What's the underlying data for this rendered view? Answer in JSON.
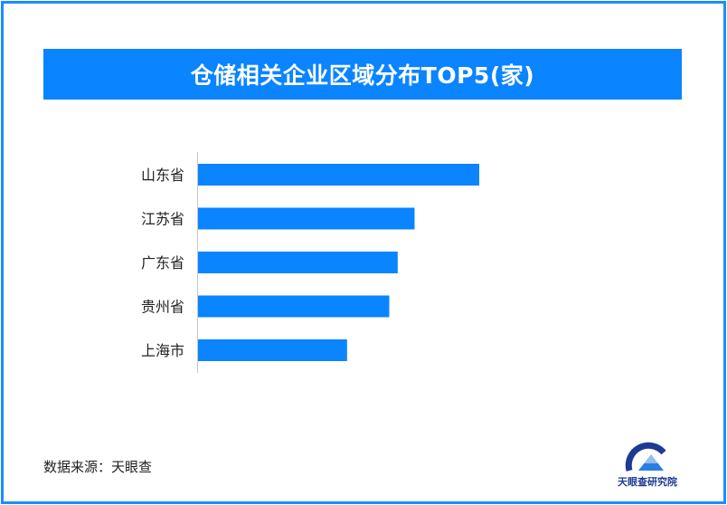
{
  "chart_data": {
    "type": "bar",
    "orientation": "horizontal",
    "title": "仓储相关企业区域分布TOP5(家)",
    "categories": [
      "山东省",
      "江苏省",
      "广东省",
      "贵州省",
      "上海市"
    ],
    "values": [
      100,
      77,
      71,
      68,
      53
    ],
    "value_labels_shown": false,
    "grid": false,
    "legend": "none",
    "bar_color": "#0a84ff"
  },
  "source": {
    "text": "数据来源：天眼查"
  },
  "logo": {
    "text": "天眼查研究院"
  },
  "colors": {
    "accent": "#0a84ff",
    "border": "#1a8cff",
    "axis": "#c8c8c8"
  }
}
